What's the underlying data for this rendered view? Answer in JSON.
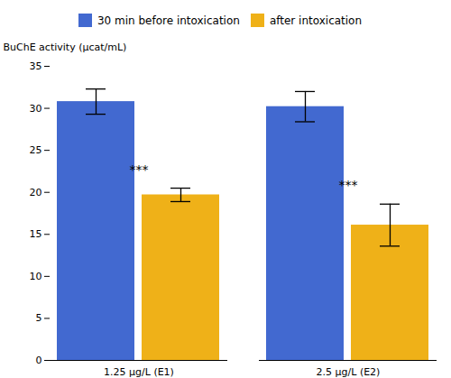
{
  "chart_data": {
    "type": "bar",
    "categories": [
      "1.25 μg/L (E1)",
      "2.5 μg/L (E2)"
    ],
    "series": [
      {
        "name": "30 min before intoxication",
        "values": [
          30.8,
          30.2
        ],
        "errors": [
          1.5,
          1.8
        ]
      },
      {
        "name": "after intoxication",
        "values": [
          19.7,
          16.1
        ],
        "errors": [
          0.8,
          2.5
        ]
      }
    ],
    "ylabel": "BuChE activity (μcat/mL)",
    "ylim": [
      0,
      35
    ],
    "yticks": [
      0,
      5,
      10,
      15,
      20,
      25,
      30,
      35
    ],
    "legend": "upper center",
    "grid": false,
    "annotations": [
      {
        "text": "***",
        "category": "1.25 μg/L (E1)",
        "series": "after intoxication"
      },
      {
        "text": "***",
        "category": "2.5 μg/L (E2)",
        "series": "after intoxication"
      }
    ]
  }
}
